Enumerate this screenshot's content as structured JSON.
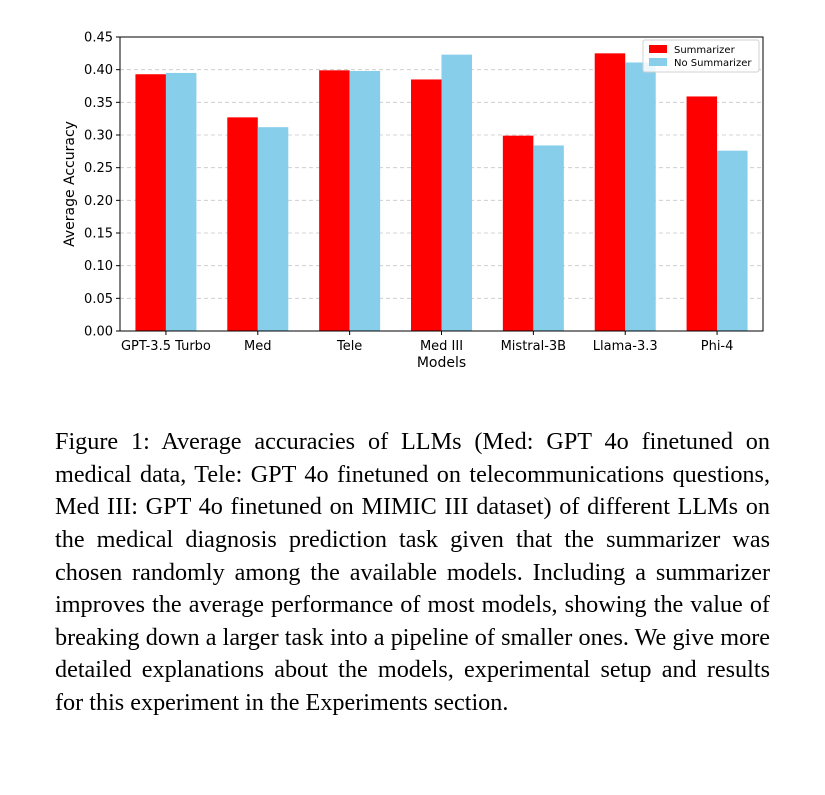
{
  "chart_data": {
    "type": "bar",
    "xlabel": "Models",
    "ylabel": "Average Accuracy",
    "ylim": [
      0,
      0.45
    ],
    "yticks": [
      "0.00",
      "0.05",
      "0.10",
      "0.15",
      "0.20",
      "0.25",
      "0.30",
      "0.35",
      "0.40",
      "0.45"
    ],
    "grid": "horizontal dashed",
    "legend_position": "top-right",
    "categories": [
      "GPT-3.5 Turbo",
      "Med",
      "Tele",
      "Med III",
      "Mistral-3B",
      "Llama-3.3",
      "Phi-4"
    ],
    "series": [
      {
        "name": "Summarizer",
        "color": "#ff0000",
        "values": [
          0.393,
          0.327,
          0.399,
          0.385,
          0.299,
          0.425,
          0.359
        ]
      },
      {
        "name": "No Summarizer",
        "color": "#87ceeb",
        "values": [
          0.395,
          0.312,
          0.398,
          0.423,
          0.284,
          0.411,
          0.276
        ]
      }
    ]
  },
  "caption": "Figure 1: Average accuracies of LLMs (Med: GPT 4o finetuned on medical data, Tele: GPT 4o finetuned on telecommunications questions, Med III: GPT 4o finetuned on MIMIC III dataset) of different LLMs on the medical diagnosis prediction task given that the summarizer was chosen randomly among the available models. Including a summarizer improves the average performance of most models, showing the value of breaking down a larger task into a pipeline of smaller ones. We give more detailed explanations about the models, experimental setup and results for this experiment in the Experiments section."
}
